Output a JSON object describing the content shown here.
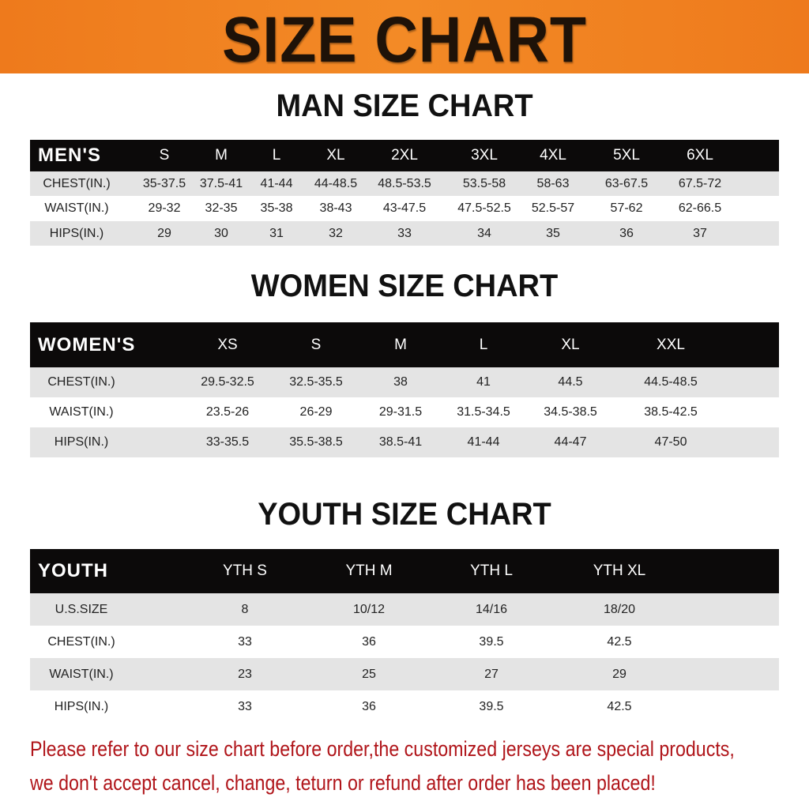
{
  "banner": {
    "title": "SIZE CHART",
    "color": "#f08424"
  },
  "men": {
    "title": "MAN SIZE CHART",
    "header": [
      "MEN'S",
      "S",
      "M",
      "L",
      "XL",
      "2XL",
      "3XL",
      "4XL",
      "5XL",
      "6XL"
    ],
    "rows": [
      [
        "CHEST(IN.)",
        "35-37.5",
        "37.5-41",
        "41-44",
        "44-48.5",
        "48.5-53.5",
        "53.5-58",
        "58-63",
        "63-67.5",
        "67.5-72"
      ],
      [
        "WAIST(IN.)",
        "29-32",
        "32-35",
        "35-38",
        "38-43",
        "43-47.5",
        "47.5-52.5",
        "52.5-57",
        "57-62",
        "62-66.5"
      ],
      [
        "HIPS(IN.)",
        "29",
        "30",
        "31",
        "32",
        "33",
        "34",
        "35",
        "36",
        "37"
      ]
    ]
  },
  "women": {
    "title": "WOMEN SIZE CHART",
    "header": [
      "WOMEN'S",
      "XS",
      "S",
      "M",
      "L",
      "XL",
      "XXL"
    ],
    "rows": [
      [
        "CHEST(IN.)",
        "29.5-32.5",
        "32.5-35.5",
        "38",
        "41",
        "44.5",
        "44.5-48.5"
      ],
      [
        "WAIST(IN.)",
        "23.5-26",
        "26-29",
        "29-31.5",
        "31.5-34.5",
        "34.5-38.5",
        "38.5-42.5"
      ],
      [
        "HIPS(IN.)",
        "33-35.5",
        "35.5-38.5",
        "38.5-41",
        "41-44",
        "44-47",
        "47-50"
      ]
    ]
  },
  "youth": {
    "title": "YOUTH SIZE CHART",
    "header": [
      "YOUTH",
      "YTH S",
      "YTH M",
      "YTH L",
      "YTH XL"
    ],
    "rows": [
      [
        "U.S.SIZE",
        "8",
        "10/12",
        "14/16",
        "18/20"
      ],
      [
        "CHEST(IN.)",
        "33",
        "36",
        "39.5",
        "42.5"
      ],
      [
        "WAIST(IN.)",
        "23",
        "25",
        "27",
        "29"
      ],
      [
        "HIPS(IN.)",
        "33",
        "36",
        "39.5",
        "42.5"
      ]
    ]
  },
  "notice": {
    "line1": "Please refer to our size chart before order,the customized jerseys are special products,",
    "line2": "we don't accept cancel, change, teturn or refund after order has been placed!",
    "color": "#b0151a"
  }
}
